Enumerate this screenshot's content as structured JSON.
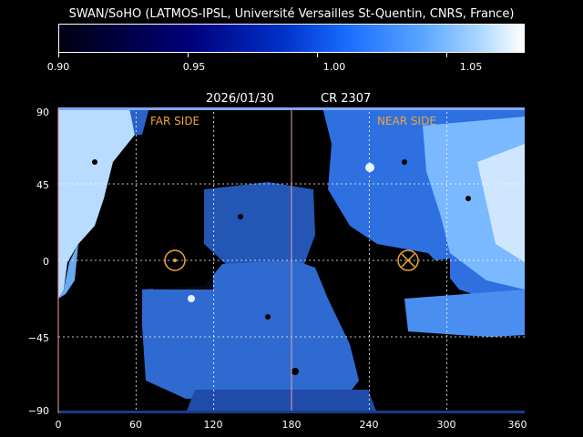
{
  "title": "SWAN/SoHO (LATMOS-IPSL, Université Versailles St-Quentin, CNRS, France)",
  "date": "2026/01/30",
  "carrington": "CR 2307",
  "colorbar": {
    "ticks": [
      "0.90",
      "0.95",
      "1.00",
      "1.05"
    ],
    "values": [
      0.9,
      0.95,
      1.0,
      1.05
    ],
    "range": [
      0.9,
      1.08
    ]
  },
  "map": {
    "far_side_label": "FAR SIDE",
    "near_side_label": "NEAR SIDE",
    "far_side_longitude": 90,
    "near_side_longitude": 270,
    "latitude_ticks": [
      "90",
      "45",
      "0",
      "−45",
      "−90"
    ],
    "longitude_ticks": [
      "0",
      "60",
      "120",
      "180",
      "240",
      "300",
      "360"
    ],
    "longitude_range": [
      0,
      360
    ],
    "latitude_range": [
      -90,
      90
    ],
    "earth_longitude_marker": 180
  },
  "colors": {
    "background": "#000000",
    "grid": "#ffffff",
    "accent": "#f0a43c",
    "marker_line": "#f0a0a0"
  }
}
